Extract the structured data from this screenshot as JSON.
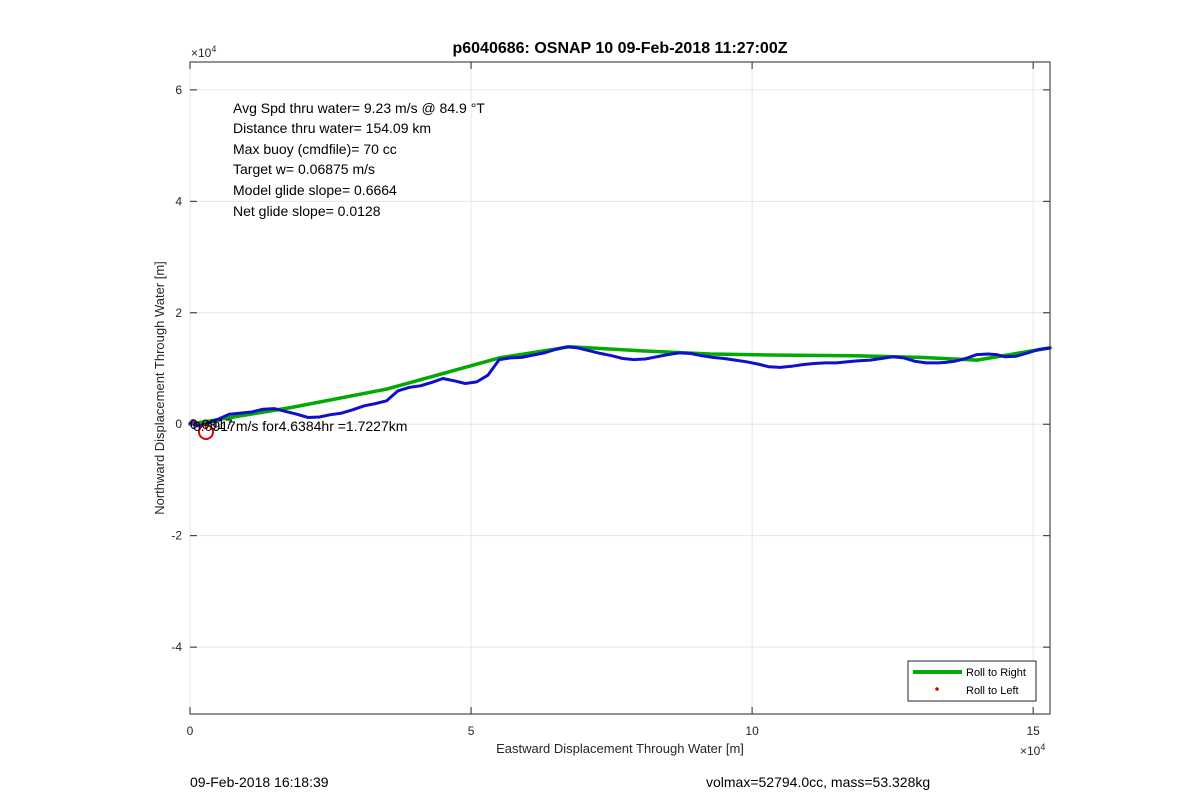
{
  "chart_data": {
    "type": "line",
    "title": "p6040686: OSNAP 10 09-Feb-2018 11:27:00Z",
    "xlabel": "Eastward Displacement Through Water [m]",
    "ylabel": "Northward Displacement Through Water [m]",
    "xlim": [
      0,
      153000
    ],
    "ylim": [
      -52000,
      65000
    ],
    "x_exponent_label": "×10",
    "x_exponent_power": "4",
    "y_exponent_label": "×10",
    "y_exponent_power": "4",
    "xticks": [
      0,
      50000,
      100000,
      150000
    ],
    "xtick_labels": [
      "0",
      "5",
      "10",
      "15"
    ],
    "yticks": [
      -40000,
      -20000,
      0,
      20000,
      40000,
      60000
    ],
    "ytick_labels": [
      "-4",
      "-2",
      "0",
      "2",
      "4",
      "6"
    ],
    "grid": true,
    "legend_position": "bottom-right",
    "colors": {
      "green": "#00aa00",
      "blue": "#1010cc",
      "red": "#dd0000",
      "purple": "#7a1f8f",
      "grid": "#e6e6e6",
      "axis": "#262626"
    },
    "stats_lines": [
      "Avg Spd thru water=  9.23 m/s @  84.9 °T",
      "Distance thru water= 154.09 km",
      "Max buoy (cmdfile)= 70 cc",
      "Target w= 0.06875 m/s",
      "Model glide slope= 0.6664",
      "Net glide slope= 0.0128"
    ],
    "current_annotation": "0.0917m/s for4.6384hr =1.7227km",
    "overlap_label": "0.0917",
    "series": [
      {
        "name": "Roll to Right",
        "color": "#00aa00",
        "x": [
          0,
          18000,
          35000,
          55000,
          67500,
          80000,
          92500,
          105000,
          118000,
          130000,
          140000,
          146500,
          153000
        ],
        "y": [
          0,
          3000,
          6300,
          11900,
          13900,
          13200,
          12600,
          12400,
          12300,
          12000,
          11500,
          12600,
          13700
        ]
      },
      {
        "name": "Roll to Left",
        "color": "#dd0000",
        "x": [],
        "y": []
      },
      {
        "color": "#1010cc",
        "x": [
          0,
          1500,
          3000,
          5000,
          7000,
          9000,
          11000,
          13000,
          15000,
          17000,
          19000,
          21000,
          23000,
          25000,
          27000,
          29000,
          31000,
          33000,
          35000,
          37000,
          39000,
          41000,
          43000,
          45000,
          47000,
          49000,
          51000,
          53000,
          55000,
          57000,
          59000,
          61000,
          63000,
          65000,
          67000,
          69000,
          71000,
          73000,
          75000,
          77000,
          79000,
          81000,
          83000,
          85000,
          87000,
          89000,
          91000,
          93000,
          95000,
          97000,
          99000,
          101000,
          103000,
          105000,
          107000,
          109000,
          111000,
          113000,
          115000,
          117000,
          119000,
          121000,
          123000,
          125000,
          127000,
          129000,
          131000,
          133000,
          134500,
          136000,
          138000,
          140000,
          142000,
          143500,
          145000,
          147000,
          149000,
          151000,
          153000
        ],
        "y": [
          200,
          -300,
          100,
          900,
          1800,
          2000,
          2200,
          2700,
          2800,
          2300,
          1800,
          1200,
          1300,
          1700,
          2000,
          2600,
          3300,
          3700,
          4200,
          6000,
          6600,
          6900,
          7500,
          8200,
          7800,
          7300,
          7600,
          8800,
          11600,
          11900,
          12000,
          12400,
          12800,
          13400,
          13900,
          13700,
          13200,
          12700,
          12300,
          11800,
          11600,
          11700,
          12100,
          12500,
          12800,
          12700,
          12300,
          12000,
          11800,
          11500,
          11200,
          10800,
          10300,
          10200,
          10400,
          10700,
          10900,
          11000,
          11000,
          11200,
          11400,
          11500,
          11800,
          12100,
          11900,
          11300,
          11000,
          11000,
          11100,
          11300,
          11800,
          12500,
          12600,
          12500,
          12100,
          12200,
          12800,
          13400,
          13700
        ]
      }
    ]
  },
  "footer": {
    "timestamp": "09-Feb-2018 16:18:39",
    "stats": "volmax=52794.0cc, mass=53.328kg"
  }
}
